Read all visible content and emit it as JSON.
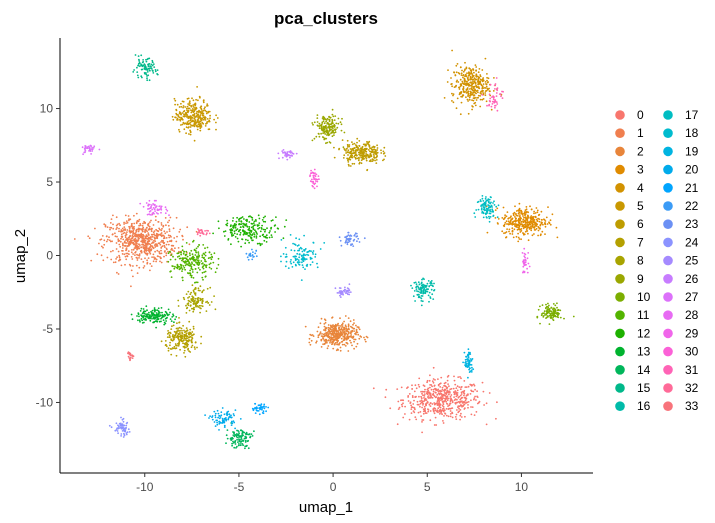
{
  "chart_data": {
    "type": "scatter",
    "title": "pca_clusters",
    "xlabel": "umap_1",
    "ylabel": "umap_2",
    "xlim": [
      -14.5,
      13.8
    ],
    "ylim": [
      -14.8,
      14.8
    ],
    "x_ticks": [
      -10,
      -5,
      0,
      5,
      10
    ],
    "y_ticks": [
      -10,
      -5,
      0,
      5,
      10
    ],
    "grid": false,
    "legend_position": "right",
    "legend_columns": 2,
    "point_size": "small",
    "series": [
      {
        "name": "0",
        "color": "#F8766D",
        "center": [
          5.8,
          -9.8
        ],
        "spread": [
          1.9,
          1.2
        ],
        "n": 520
      },
      {
        "name": "1",
        "color": "#F07F4F",
        "center": [
          -10.2,
          1.0
        ],
        "spread": [
          1.7,
          1.4
        ],
        "n": 650
      },
      {
        "name": "2",
        "color": "#E8853A",
        "center": [
          0.2,
          -5.4
        ],
        "spread": [
          1.0,
          0.8
        ],
        "n": 380
      },
      {
        "name": "3",
        "color": "#E08B00",
        "center": [
          10.2,
          2.3
        ],
        "spread": [
          1.1,
          0.9
        ],
        "n": 340
      },
      {
        "name": "4",
        "color": "#D29200",
        "center": [
          7.3,
          11.6
        ],
        "spread": [
          0.9,
          1.2
        ],
        "n": 330
      },
      {
        "name": "5",
        "color": "#C99800",
        "center": [
          -7.4,
          9.5
        ],
        "spread": [
          0.9,
          1.0
        ],
        "n": 300
      },
      {
        "name": "6",
        "color": "#BE9C00",
        "center": [
          1.5,
          7.0
        ],
        "spread": [
          0.9,
          0.7
        ],
        "n": 260
      },
      {
        "name": "7",
        "color": "#B4A000",
        "center": [
          -8.0,
          -5.7
        ],
        "spread": [
          0.8,
          0.8
        ],
        "n": 200
      },
      {
        "name": "8",
        "color": "#A8A400",
        "center": [
          -7.3,
          -3.0
        ],
        "spread": [
          0.6,
          0.7
        ],
        "n": 110
      },
      {
        "name": "9",
        "color": "#9AA700",
        "center": [
          -0.3,
          8.7
        ],
        "spread": [
          0.6,
          0.8
        ],
        "n": 170
      },
      {
        "name": "10",
        "color": "#7CAE00",
        "center": [
          11.6,
          -3.9
        ],
        "spread": [
          0.5,
          0.5
        ],
        "n": 120
      },
      {
        "name": "11",
        "color": "#53B400",
        "center": [
          -7.5,
          -0.5
        ],
        "spread": [
          1.0,
          1.0
        ],
        "n": 220
      },
      {
        "name": "12",
        "color": "#1EB100",
        "center": [
          -4.4,
          1.8
        ],
        "spread": [
          1.4,
          0.8
        ],
        "n": 210
      },
      {
        "name": "13",
        "color": "#00B32F",
        "center": [
          -9.5,
          -4.1
        ],
        "spread": [
          0.9,
          0.5
        ],
        "n": 160
      },
      {
        "name": "14",
        "color": "#00B65B",
        "center": [
          -5.0,
          -12.4
        ],
        "spread": [
          0.6,
          0.6
        ],
        "n": 110
      },
      {
        "name": "15",
        "color": "#00B88A",
        "center": [
          -10.0,
          12.7
        ],
        "spread": [
          0.6,
          0.6
        ],
        "n": 90
      },
      {
        "name": "16",
        "color": "#00BBA9",
        "center": [
          4.8,
          -2.3
        ],
        "spread": [
          0.5,
          0.6
        ],
        "n": 110
      },
      {
        "name": "17",
        "color": "#00BDC2",
        "center": [
          8.2,
          3.3
        ],
        "spread": [
          0.5,
          0.7
        ],
        "n": 100
      },
      {
        "name": "18",
        "color": "#00BBCE",
        "center": [
          -1.7,
          0.0
        ],
        "spread": [
          0.9,
          0.9
        ],
        "n": 110
      },
      {
        "name": "19",
        "color": "#00B4E1",
        "center": [
          7.2,
          -7.3
        ],
        "spread": [
          0.2,
          0.8
        ],
        "n": 70
      },
      {
        "name": "20",
        "color": "#00ABEB",
        "center": [
          -5.8,
          -11.1
        ],
        "spread": [
          0.6,
          0.5
        ],
        "n": 80
      },
      {
        "name": "21",
        "color": "#00A5FF",
        "center": [
          -3.9,
          -10.4
        ],
        "spread": [
          0.4,
          0.3
        ],
        "n": 40
      },
      {
        "name": "22",
        "color": "#3B9BF6",
        "center": [
          -4.3,
          0.0
        ],
        "spread": [
          0.3,
          0.3
        ],
        "n": 20
      },
      {
        "name": "23",
        "color": "#6B90F4",
        "center": [
          0.9,
          1.1
        ],
        "spread": [
          0.4,
          0.4
        ],
        "n": 50
      },
      {
        "name": "24",
        "color": "#8B93FF",
        "center": [
          -11.2,
          -11.8
        ],
        "spread": [
          0.4,
          0.5
        ],
        "n": 60
      },
      {
        "name": "25",
        "color": "#A58AFF",
        "center": [
          0.6,
          -2.5
        ],
        "spread": [
          0.4,
          0.3
        ],
        "n": 40
      },
      {
        "name": "26",
        "color": "#C77CFF",
        "center": [
          -2.4,
          6.9
        ],
        "spread": [
          0.4,
          0.3
        ],
        "n": 40
      },
      {
        "name": "27",
        "color": "#DC71FA",
        "center": [
          -13.0,
          7.2
        ],
        "spread": [
          0.3,
          0.3
        ],
        "n": 35
      },
      {
        "name": "28",
        "color": "#E76BF3",
        "center": [
          -9.5,
          3.2
        ],
        "spread": [
          0.6,
          0.4
        ],
        "n": 55
      },
      {
        "name": "29",
        "color": "#F066EA",
        "center": [
          10.2,
          -0.5
        ],
        "spread": [
          0.2,
          0.8
        ],
        "n": 35
      },
      {
        "name": "30",
        "color": "#FB61D7",
        "center": [
          -1.0,
          5.3
        ],
        "spread": [
          0.2,
          0.6
        ],
        "n": 35
      },
      {
        "name": "31",
        "color": "#FF63B6",
        "center": [
          8.6,
          10.8
        ],
        "spread": [
          0.4,
          0.9
        ],
        "n": 45
      },
      {
        "name": "32",
        "color": "#FF6A98",
        "center": [
          -6.9,
          1.6
        ],
        "spread": [
          0.3,
          0.3
        ],
        "n": 25
      },
      {
        "name": "33",
        "color": "#F8737B",
        "center": [
          -10.8,
          -6.8
        ],
        "spread": [
          0.2,
          0.3
        ],
        "n": 20
      }
    ]
  }
}
